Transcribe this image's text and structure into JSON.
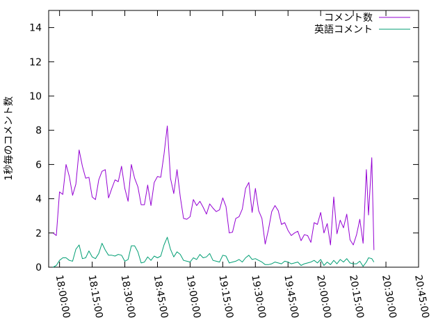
{
  "chart_data": {
    "type": "line",
    "title": "",
    "xlabel": "",
    "ylabel": "1秒毎のコメント数",
    "ylim": [
      0,
      15
    ],
    "yticks": [
      "0",
      "2",
      "4",
      "6",
      "8",
      "10",
      "12",
      "14"
    ],
    "xlim": [
      "17:55:00",
      "20:45:00"
    ],
    "xticks": [
      "18:00:00",
      "18:15:00",
      "18:30:00",
      "18:45:00",
      "19:00:00",
      "19:15:00",
      "19:30:00",
      "19:45:00",
      "20:00:00",
      "20:15:00",
      "20:30:00",
      "20:45:00"
    ],
    "grid": false,
    "legend": "top-right",
    "series": [
      {
        "name": "コメント数",
        "color": "#9400d3",
        "points": [
          [
            "17:57:00",
            2.0
          ],
          [
            "17:58:30",
            1.85
          ],
          [
            "18:00:00",
            4.4
          ],
          [
            "18:01:30",
            4.25
          ],
          [
            "18:03:00",
            6.0
          ],
          [
            "18:04:30",
            5.3
          ],
          [
            "18:06:00",
            4.2
          ],
          [
            "18:07:30",
            4.85
          ],
          [
            "18:09:00",
            6.85
          ],
          [
            "18:10:30",
            5.9
          ],
          [
            "18:12:00",
            5.2
          ],
          [
            "18:13:30",
            5.25
          ],
          [
            "18:15:00",
            4.1
          ],
          [
            "18:16:30",
            3.95
          ],
          [
            "18:18:00",
            5.1
          ],
          [
            "18:19:30",
            5.6
          ],
          [
            "18:21:00",
            5.7
          ],
          [
            "18:22:30",
            4.05
          ],
          [
            "18:24:00",
            4.6
          ],
          [
            "18:25:30",
            5.1
          ],
          [
            "18:27:00",
            5.0
          ],
          [
            "18:28:30",
            5.9
          ],
          [
            "18:30:00",
            4.6
          ],
          [
            "18:31:30",
            3.85
          ],
          [
            "18:33:00",
            6.0
          ],
          [
            "18:34:30",
            5.2
          ],
          [
            "18:36:00",
            4.7
          ],
          [
            "18:37:30",
            3.65
          ],
          [
            "18:39:00",
            3.65
          ],
          [
            "18:40:30",
            4.8
          ],
          [
            "18:42:00",
            3.6
          ],
          [
            "18:43:30",
            4.95
          ],
          [
            "18:45:00",
            5.3
          ],
          [
            "18:46:30",
            5.25
          ],
          [
            "18:48:00",
            6.6
          ],
          [
            "18:49:30",
            8.25
          ],
          [
            "18:51:00",
            5.2
          ],
          [
            "18:52:30",
            4.3
          ],
          [
            "18:54:00",
            5.7
          ],
          [
            "18:55:30",
            4.1
          ],
          [
            "18:57:00",
            2.85
          ],
          [
            "18:58:30",
            2.8
          ],
          [
            "19:00:00",
            2.95
          ],
          [
            "19:01:30",
            3.95
          ],
          [
            "19:03:00",
            3.6
          ],
          [
            "19:04:30",
            3.85
          ],
          [
            "19:06:00",
            3.5
          ],
          [
            "19:07:30",
            3.1
          ],
          [
            "19:09:00",
            3.7
          ],
          [
            "19:10:30",
            3.45
          ],
          [
            "19:12:00",
            3.25
          ],
          [
            "19:13:30",
            3.35
          ],
          [
            "19:15:00",
            4.05
          ],
          [
            "19:16:30",
            3.55
          ],
          [
            "19:18:00",
            2.0
          ],
          [
            "19:19:30",
            2.05
          ],
          [
            "19:21:00",
            2.85
          ],
          [
            "19:22:30",
            2.95
          ],
          [
            "19:24:00",
            3.4
          ],
          [
            "19:25:30",
            4.6
          ],
          [
            "19:27:00",
            4.95
          ],
          [
            "19:28:30",
            3.2
          ],
          [
            "19:30:00",
            4.6
          ],
          [
            "19:31:30",
            3.3
          ],
          [
            "19:33:00",
            2.85
          ],
          [
            "19:34:30",
            1.35
          ],
          [
            "19:36:00",
            2.2
          ],
          [
            "19:37:30",
            3.25
          ],
          [
            "19:39:00",
            3.6
          ],
          [
            "19:40:30",
            3.3
          ],
          [
            "19:42:00",
            2.5
          ],
          [
            "19:43:30",
            2.6
          ],
          [
            "19:45:00",
            2.15
          ],
          [
            "19:46:30",
            1.85
          ],
          [
            "19:48:00",
            2.0
          ],
          [
            "19:49:30",
            2.1
          ],
          [
            "19:51:00",
            1.55
          ],
          [
            "19:52:30",
            1.9
          ],
          [
            "19:54:00",
            1.85
          ],
          [
            "19:55:30",
            1.45
          ],
          [
            "19:57:00",
            2.6
          ],
          [
            "19:58:30",
            2.5
          ],
          [
            "20:00:00",
            3.2
          ],
          [
            "20:01:30",
            2.0
          ],
          [
            "20:03:00",
            2.55
          ],
          [
            "20:04:30",
            1.3
          ],
          [
            "20:06:00",
            4.1
          ],
          [
            "20:07:30",
            1.95
          ],
          [
            "20:09:00",
            2.75
          ],
          [
            "20:10:30",
            2.3
          ],
          [
            "20:12:00",
            3.1
          ],
          [
            "20:13:30",
            1.6
          ],
          [
            "20:15:00",
            1.3
          ],
          [
            "20:16:30",
            1.9
          ],
          [
            "20:18:00",
            2.8
          ],
          [
            "20:19:30",
            1.4
          ],
          [
            "20:21:00",
            5.7
          ],
          [
            "20:22:00",
            3.05
          ],
          [
            "20:23:30",
            6.4
          ],
          [
            "20:24:30",
            1.0
          ]
        ]
      },
      {
        "name": "英語コメント",
        "color": "#009e73",
        "points": [
          [
            "17:57:00",
            0.0
          ],
          [
            "17:58:30",
            0.1
          ],
          [
            "18:00:00",
            0.4
          ],
          [
            "18:01:30",
            0.55
          ],
          [
            "18:03:00",
            0.55
          ],
          [
            "18:04:30",
            0.4
          ],
          [
            "18:06:00",
            0.35
          ],
          [
            "18:07:30",
            1.05
          ],
          [
            "18:09:00",
            1.3
          ],
          [
            "18:10:30",
            0.5
          ],
          [
            "18:12:00",
            0.55
          ],
          [
            "18:13:30",
            0.95
          ],
          [
            "18:15:00",
            0.6
          ],
          [
            "18:16:30",
            0.5
          ],
          [
            "18:18:00",
            0.8
          ],
          [
            "18:19:30",
            1.4
          ],
          [
            "18:21:00",
            1.0
          ],
          [
            "18:22:30",
            0.7
          ],
          [
            "18:24:00",
            0.7
          ],
          [
            "18:25:30",
            0.65
          ],
          [
            "18:27:00",
            0.75
          ],
          [
            "18:28:30",
            0.7
          ],
          [
            "18:30:00",
            0.35
          ],
          [
            "18:31:30",
            0.45
          ],
          [
            "18:33:00",
            1.25
          ],
          [
            "18:34:30",
            1.25
          ],
          [
            "18:36:00",
            0.9
          ],
          [
            "18:37:30",
            0.25
          ],
          [
            "18:39:00",
            0.3
          ],
          [
            "18:40:30",
            0.6
          ],
          [
            "18:42:00",
            0.4
          ],
          [
            "18:43:30",
            0.65
          ],
          [
            "18:45:00",
            0.55
          ],
          [
            "18:46:30",
            0.65
          ],
          [
            "18:48:00",
            1.3
          ],
          [
            "18:49:30",
            1.75
          ],
          [
            "18:51:00",
            1.05
          ],
          [
            "18:52:30",
            0.6
          ],
          [
            "18:54:00",
            0.9
          ],
          [
            "18:55:30",
            0.75
          ],
          [
            "18:57:00",
            0.4
          ],
          [
            "18:58:30",
            0.35
          ],
          [
            "19:00:00",
            0.3
          ],
          [
            "19:01:30",
            0.55
          ],
          [
            "19:03:00",
            0.45
          ],
          [
            "19:04:30",
            0.75
          ],
          [
            "19:06:00",
            0.55
          ],
          [
            "19:07:30",
            0.6
          ],
          [
            "19:09:00",
            0.8
          ],
          [
            "19:10:30",
            0.4
          ],
          [
            "19:12:00",
            0.35
          ],
          [
            "19:13:30",
            0.3
          ],
          [
            "19:15:00",
            0.7
          ],
          [
            "19:16:30",
            0.65
          ],
          [
            "19:18:00",
            0.25
          ],
          [
            "19:19:30",
            0.3
          ],
          [
            "19:21:00",
            0.35
          ],
          [
            "19:22:30",
            0.45
          ],
          [
            "19:24:00",
            0.3
          ],
          [
            "19:25:30",
            0.55
          ],
          [
            "19:27:00",
            0.7
          ],
          [
            "19:28:30",
            0.45
          ],
          [
            "19:30:00",
            0.5
          ],
          [
            "19:31:30",
            0.4
          ],
          [
            "19:33:00",
            0.3
          ],
          [
            "19:34:30",
            0.15
          ],
          [
            "19:36:00",
            0.15
          ],
          [
            "19:37:30",
            0.2
          ],
          [
            "19:39:00",
            0.3
          ],
          [
            "19:40:30",
            0.25
          ],
          [
            "19:42:00",
            0.2
          ],
          [
            "19:43:30",
            0.35
          ],
          [
            "19:45:00",
            0.3
          ],
          [
            "19:46:30",
            0.2
          ],
          [
            "19:48:00",
            0.25
          ],
          [
            "19:49:30",
            0.3
          ],
          [
            "19:51:00",
            0.1
          ],
          [
            "19:52:30",
            0.2
          ],
          [
            "19:54:00",
            0.25
          ],
          [
            "19:55:30",
            0.3
          ],
          [
            "19:57:00",
            0.4
          ],
          [
            "19:58:30",
            0.25
          ],
          [
            "20:00:00",
            0.45
          ],
          [
            "20:01:30",
            0.1
          ],
          [
            "20:03:00",
            0.3
          ],
          [
            "20:04:30",
            0.15
          ],
          [
            "20:06:00",
            0.4
          ],
          [
            "20:07:30",
            0.2
          ],
          [
            "20:09:00",
            0.45
          ],
          [
            "20:10:30",
            0.3
          ],
          [
            "20:12:00",
            0.5
          ],
          [
            "20:13:30",
            0.25
          ],
          [
            "20:15:00",
            0.2
          ],
          [
            "20:16:30",
            0.2
          ],
          [
            "20:18:00",
            0.35
          ],
          [
            "20:19:30",
            0.05
          ],
          [
            "20:21:00",
            0.3
          ],
          [
            "20:22:00",
            0.55
          ],
          [
            "20:23:30",
            0.5
          ],
          [
            "20:24:30",
            0.3
          ]
        ]
      }
    ]
  }
}
